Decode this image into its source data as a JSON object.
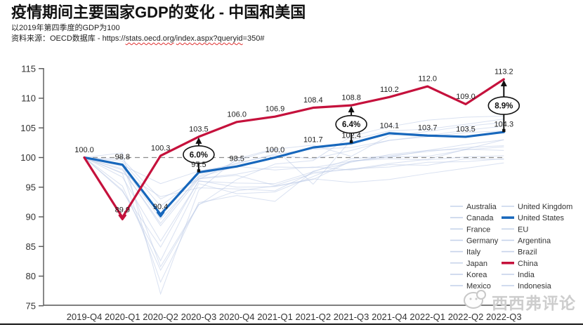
{
  "header": {
    "title": "疫情期间主要国家GDP的变化 - 中国和美国",
    "subtitle": "以2019年第四季度的GDP为100",
    "source_prefix": "资料来源：OECD数据库 - ",
    "source_url": {
      "p0": "https://",
      "p1": "stats.oecd.org",
      "p2": "/",
      "p3": "index.aspx?queryid",
      "p4": "=350#"
    }
  },
  "watermark": {
    "text": "西西弗评论",
    "icon": "chat-bubble-icon"
  },
  "colors": {
    "china_red": "#c5113c",
    "us_blue": "#1767bc",
    "faint_line": "#b9c9e6",
    "baseline_gray": "#8c8c8c",
    "axis_gray": "#555555",
    "tick_text": "#333333",
    "label_text": "#1f1f1f"
  },
  "chart_data": {
    "type": "line",
    "x": [
      "2019-Q4",
      "2020-Q1",
      "2020-Q2",
      "2020-Q3",
      "2020-Q4",
      "2021-Q1",
      "2021-Q2",
      "2021-Q3",
      "2021-Q4",
      "2022-Q1",
      "2022-Q2",
      "2022-Q3"
    ],
    "ylim": [
      75,
      115
    ],
    "yticks": [
      75,
      80,
      85,
      90,
      95,
      100,
      105,
      110,
      115
    ],
    "baseline": {
      "value": 100,
      "style": "dashed"
    },
    "grid": false,
    "legend_position": "lower-right",
    "highlight_series": [
      {
        "name": "China",
        "color": "#c5113c",
        "values": [
          100.0,
          89.9,
          100.3,
          103.5,
          106.0,
          106.9,
          108.4,
          108.8,
          110.2,
          112.0,
          109.0,
          113.2
        ],
        "point_labels": [
          "100.0",
          "89.9",
          "100.3",
          "103.5",
          "106.0",
          "106.9",
          "108.4",
          "108.8",
          "110.2",
          "112.0",
          "109.0",
          "113.2"
        ]
      },
      {
        "name": "United States",
        "color": "#1767bc",
        "values": [
          100.0,
          98.8,
          90.4,
          97.5,
          98.5,
          100.0,
          101.7,
          102.4,
          104.1,
          103.7,
          103.5,
          104.3
        ],
        "point_labels": [
          "",
          "98.8",
          "90.4",
          "97.5",
          "98.5",
          "100.0",
          "101.7",
          "102.4",
          "104.1",
          "103.7",
          "103.5",
          "104.3"
        ]
      }
    ],
    "background_series": [
      {
        "name": "Australia",
        "values": [
          100,
          99.7,
          93.0,
          96.3,
          99.5,
          101.4,
          102.1,
          100.2,
          103.7,
          104.4,
          105.3,
          105.9
        ]
      },
      {
        "name": "Canada",
        "values": [
          100,
          97.9,
          88.9,
          96.9,
          99.1,
          100.4,
          99.8,
          101.2,
          102.9,
          103.7,
          104.6,
          105.3
        ]
      },
      {
        "name": "France",
        "values": [
          100,
          94.3,
          84.9,
          96.1,
          95.0,
          95.1,
          96.3,
          99.4,
          99.8,
          99.6,
          100.1,
          100.3
        ]
      },
      {
        "name": "Germany",
        "values": [
          100,
          98.1,
          88.5,
          96.4,
          97.0,
          95.3,
          97.3,
          98.1,
          98.4,
          99.2,
          99.3,
          99.8
        ]
      },
      {
        "name": "Italy",
        "values": [
          100,
          94.5,
          82.6,
          95.6,
          93.9,
          94.2,
          96.8,
          99.4,
          100.1,
          100.2,
          101.3,
          101.8
        ]
      },
      {
        "name": "Japan",
        "values": [
          100,
          99.4,
          91.8,
          96.7,
          98.5,
          97.9,
          98.4,
          97.9,
          98.8,
          98.7,
          99.8,
          99.7
        ]
      },
      {
        "name": "Korea",
        "values": [
          100,
          98.7,
          95.6,
          97.7,
          98.9,
          100.6,
          101.4,
          101.7,
          102.9,
          103.5,
          104.2,
          104.5
        ]
      },
      {
        "name": "Mexico",
        "values": [
          100,
          98.9,
          81.6,
          92.1,
          94.4,
          95.2,
          96.4,
          95.8,
          96.3,
          97.3,
          98.2,
          99.1
        ]
      },
      {
        "name": "United Kingdom",
        "values": [
          100,
          97.3,
          79.0,
          92.4,
          93.6,
          92.6,
          97.7,
          99.2,
          100.5,
          101.2,
          101.4,
          101.2
        ]
      },
      {
        "name": "EU",
        "values": [
          100,
          96.7,
          85.9,
          96.0,
          95.7,
          95.6,
          97.6,
          99.8,
          100.3,
          101.0,
          101.7,
          102.0
        ]
      },
      {
        "name": "Argentina",
        "values": [
          100,
          95.2,
          81.0,
          92.0,
          96.3,
          98.9,
          99.5,
          103.6,
          105.2,
          106.3,
          106.8,
          107.0
        ]
      },
      {
        "name": "Brazil",
        "values": [
          100,
          98.5,
          89.6,
          96.5,
          97.2,
          98.4,
          98.3,
          99.4,
          100.1,
          101.2,
          102.2,
          103.0
        ]
      },
      {
        "name": "India",
        "values": [
          100,
          100.8,
          77.0,
          94.5,
          99.8,
          101.5,
          95.5,
          103.0,
          104.5,
          104.8,
          105.6,
          106.5
        ]
      },
      {
        "name": "Indonesia",
        "values": [
          100,
          97.4,
          93.4,
          94.9,
          94.7,
          94.4,
          97.5,
          98.0,
          99.0,
          99.7,
          101.4,
          103.0
        ]
      }
    ],
    "annotations": [
      {
        "text": "6.0%",
        "x_index": 3,
        "from": 97.5,
        "to": 103.5
      },
      {
        "text": "6.4%",
        "x_index": 7,
        "from": 102.4,
        "to": 108.8
      },
      {
        "text": "8.9%",
        "x_index": 11,
        "from": 104.3,
        "to": 113.2
      }
    ],
    "dip_markers": [
      {
        "series": "China",
        "x_index": 1,
        "value": 89.9,
        "color": "#c5113c"
      },
      {
        "series": "United States",
        "x_index": 2,
        "value": 90.4,
        "color": "#1767bc"
      }
    ],
    "legend": {
      "columns": [
        [
          "Australia",
          "Canada",
          "France",
          "Germany",
          "Italy",
          "Japan",
          "Korea",
          "Mexico"
        ],
        [
          "United Kingdom",
          "United States",
          "EU",
          "Argentina",
          "Brazil",
          "China",
          "India",
          "Indonesia"
        ]
      ],
      "highlighted": {
        "United States": "#1767bc",
        "China": "#c5113c"
      }
    }
  }
}
